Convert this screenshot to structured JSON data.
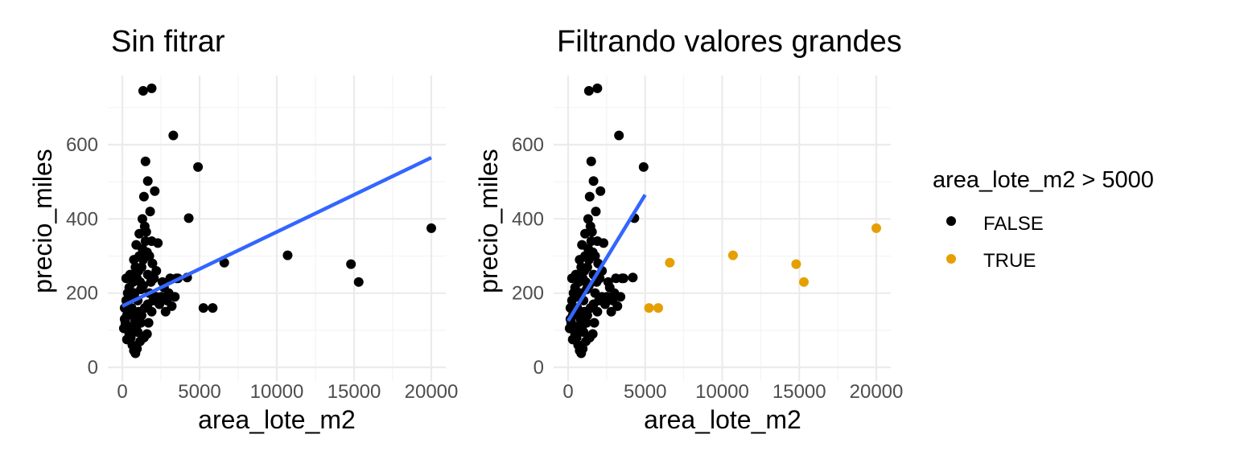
{
  "chart_data": [
    {
      "type": "scatter",
      "title": "Sin fitrar",
      "xlabel": "area_lote_m2",
      "ylabel": "precio_miles",
      "xlim": [
        0,
        20000
      ],
      "ylim": [
        0,
        755
      ],
      "x_ticks": [
        "0",
        "5000",
        "10000",
        "15000",
        "20000"
      ],
      "y_ticks": [
        "0",
        "200",
        "400",
        "600"
      ],
      "grid": true,
      "fit_line": {
        "color": "#3366ff",
        "x": [
          0,
          20000
        ],
        "y": [
          165,
          565
        ]
      },
      "series": [
        {
          "color": "#000000",
          "points": [
            [
              1350,
              745
            ],
            [
              1900,
              752
            ],
            [
              3300,
              625
            ],
            [
              1500,
              555
            ],
            [
              4900,
              540
            ],
            [
              1650,
              502
            ],
            [
              2100,
              475
            ],
            [
              1400,
              460
            ],
            [
              4300,
              402
            ],
            [
              1800,
              420
            ],
            [
              2300,
              335
            ],
            [
              1300,
              400
            ],
            [
              1100,
              360
            ],
            [
              900,
              330
            ],
            [
              1600,
              310
            ],
            [
              6600,
              282
            ],
            [
              3100,
              240
            ],
            [
              3500,
              240
            ],
            [
              4200,
              242
            ],
            [
              5250,
              160
            ],
            [
              5850,
              160
            ],
            [
              10700,
              302
            ],
            [
              14800,
              278
            ],
            [
              15300,
              230
            ],
            [
              20000,
              375
            ],
            [
              2700,
              215
            ],
            [
              3000,
              200
            ],
            [
              2500,
              190
            ],
            [
              3200,
              165
            ],
            [
              2800,
              150
            ],
            [
              2400,
              170
            ],
            [
              2000,
              180
            ],
            [
              500,
              250
            ],
            [
              700,
              230
            ],
            [
              800,
              200
            ],
            [
              1000,
              180
            ],
            [
              1200,
              210
            ],
            [
              600,
              160
            ],
            [
              300,
              140
            ],
            [
              200,
              120
            ],
            [
              400,
              100
            ],
            [
              550,
              80
            ],
            [
              650,
              60
            ],
            [
              750,
              45
            ],
            [
              850,
              38
            ],
            [
              950,
              50
            ],
            [
              1150,
              70
            ],
            [
              1400,
              80
            ],
            [
              1600,
              90
            ],
            [
              900,
              110
            ],
            [
              1700,
              120
            ],
            [
              1900,
              150
            ],
            [
              1250,
              140
            ],
            [
              1050,
              260
            ],
            [
              1350,
              290
            ],
            [
              1500,
              340
            ],
            [
              750,
              290
            ],
            [
              450,
              215
            ],
            [
              250,
              180
            ],
            [
              150,
              130
            ],
            [
              1450,
              380
            ],
            [
              1550,
              365
            ],
            [
              1850,
              230
            ],
            [
              2200,
              260
            ],
            [
              1750,
              200
            ],
            [
              1150,
              230
            ],
            [
              850,
              270
            ],
            [
              1950,
              280
            ],
            [
              1650,
              250
            ],
            [
              2050,
              240
            ],
            [
              350,
              200
            ],
            [
              600,
              190
            ],
            [
              1300,
              320
            ],
            [
              1200,
              120
            ],
            [
              1000,
              95
            ],
            [
              800,
              130
            ],
            [
              700,
              150
            ],
            [
              1450,
              160
            ],
            [
              1650,
              170
            ],
            [
              2600,
              230
            ],
            [
              2900,
              180
            ],
            [
              3400,
              190
            ],
            [
              1100,
              300
            ],
            [
              950,
              240
            ],
            [
              1250,
              270
            ],
            [
              1750,
              300
            ],
            [
              1350,
              220
            ],
            [
              1050,
              150
            ],
            [
              650,
              110
            ],
            [
              450,
              90
            ],
            [
              300,
              75
            ],
            [
              100,
              105
            ],
            [
              150,
              160
            ],
            [
              250,
              240
            ],
            [
              1900,
              340
            ],
            [
              2200,
              190
            ],
            [
              3600,
              240
            ]
          ]
        }
      ]
    },
    {
      "type": "scatter",
      "title": "Filtrando valores grandes",
      "xlabel": "area_lote_m2",
      "ylabel": "precio_miles",
      "xlim": [
        0,
        20000
      ],
      "ylim": [
        0,
        755
      ],
      "x_ticks": [
        "0",
        "5000",
        "10000",
        "15000",
        "20000"
      ],
      "y_ticks": [
        "0",
        "200",
        "400",
        "600"
      ],
      "grid": true,
      "fit_line": {
        "color": "#3366ff",
        "x": [
          0,
          5000
        ],
        "y": [
          125,
          465
        ]
      },
      "legend": {
        "title": "area_lote_m2 > 5000",
        "placement": "right",
        "items": [
          {
            "label": "FALSE",
            "color": "#000000"
          },
          {
            "label": "TRUE",
            "color": "#e69f00"
          }
        ]
      },
      "series": [
        {
          "name": "FALSE",
          "color": "#000000",
          "points": [
            [
              1350,
              745
            ],
            [
              1900,
              752
            ],
            [
              3300,
              625
            ],
            [
              1500,
              555
            ],
            [
              4900,
              540
            ],
            [
              1650,
              502
            ],
            [
              2100,
              475
            ],
            [
              1400,
              460
            ],
            [
              4300,
              402
            ],
            [
              1800,
              420
            ],
            [
              2300,
              335
            ],
            [
              1300,
              400
            ],
            [
              1100,
              360
            ],
            [
              900,
              330
            ],
            [
              1600,
              310
            ],
            [
              3100,
              240
            ],
            [
              3500,
              240
            ],
            [
              4200,
              242
            ],
            [
              2700,
              215
            ],
            [
              3000,
              200
            ],
            [
              2500,
              190
            ],
            [
              3200,
              165
            ],
            [
              2800,
              150
            ],
            [
              2400,
              170
            ],
            [
              2000,
              180
            ],
            [
              500,
              250
            ],
            [
              700,
              230
            ],
            [
              800,
              200
            ],
            [
              1000,
              180
            ],
            [
              1200,
              210
            ],
            [
              600,
              160
            ],
            [
              300,
              140
            ],
            [
              200,
              120
            ],
            [
              400,
              100
            ],
            [
              550,
              80
            ],
            [
              650,
              60
            ],
            [
              750,
              45
            ],
            [
              850,
              38
            ],
            [
              950,
              50
            ],
            [
              1150,
              70
            ],
            [
              1400,
              80
            ],
            [
              1600,
              90
            ],
            [
              900,
              110
            ],
            [
              1700,
              120
            ],
            [
              1900,
              150
            ],
            [
              1250,
              140
            ],
            [
              1050,
              260
            ],
            [
              1350,
              290
            ],
            [
              1500,
              340
            ],
            [
              750,
              290
            ],
            [
              450,
              215
            ],
            [
              250,
              180
            ],
            [
              150,
              130
            ],
            [
              1450,
              380
            ],
            [
              1550,
              365
            ],
            [
              1850,
              230
            ],
            [
              2200,
              260
            ],
            [
              1750,
              200
            ],
            [
              1150,
              230
            ],
            [
              850,
              270
            ],
            [
              1950,
              280
            ],
            [
              1650,
              250
            ],
            [
              2050,
              240
            ],
            [
              350,
              200
            ],
            [
              600,
              190
            ],
            [
              1300,
              320
            ],
            [
              1200,
              120
            ],
            [
              1000,
              95
            ],
            [
              800,
              130
            ],
            [
              700,
              150
            ],
            [
              1450,
              160
            ],
            [
              1650,
              170
            ],
            [
              2600,
              230
            ],
            [
              2900,
              180
            ],
            [
              3400,
              190
            ],
            [
              1100,
              300
            ],
            [
              950,
              240
            ],
            [
              1250,
              270
            ],
            [
              1750,
              300
            ],
            [
              1350,
              220
            ],
            [
              1050,
              150
            ],
            [
              650,
              110
            ],
            [
              450,
              90
            ],
            [
              300,
              75
            ],
            [
              100,
              105
            ],
            [
              150,
              160
            ],
            [
              250,
              240
            ],
            [
              1900,
              340
            ],
            [
              2200,
              190
            ],
            [
              3600,
              240
            ]
          ]
        },
        {
          "name": "TRUE",
          "color": "#e69f00",
          "points": [
            [
              6600,
              282
            ],
            [
              5250,
              160
            ],
            [
              5850,
              160
            ],
            [
              10700,
              302
            ],
            [
              14800,
              278
            ],
            [
              15300,
              230
            ],
            [
              20000,
              375
            ]
          ]
        }
      ]
    }
  ]
}
